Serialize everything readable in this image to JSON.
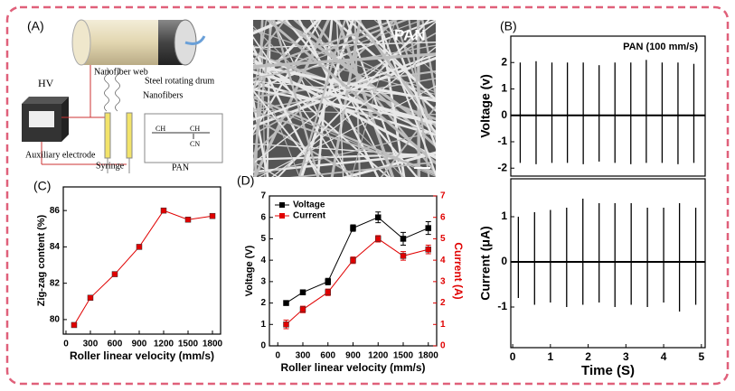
{
  "schematic": {
    "label": "(A)",
    "hv": "HV",
    "web": "Nanofiber  web",
    "drum": "Steel rotating drum",
    "fibers": "Nanofibers",
    "electrode": "Auxiliary electrode",
    "syringe": "Syringe",
    "formula": {
      "ch2": "CH",
      "ch": "CH",
      "cn": "CN",
      "name": "PAN"
    }
  },
  "sem": {
    "label": "PAN"
  },
  "chart_data": [
    {
      "type": "line",
      "label": "(C)",
      "ylabel": "Zig-zag content (%)",
      "xlabel": "Roller linear velocity (mm/s)",
      "x": [
        100,
        300,
        600,
        900,
        1200,
        1500,
        1800
      ],
      "values": [
        79.7,
        81.2,
        82.5,
        84,
        86,
        85.5,
        85.7
      ],
      "color": "#e00000",
      "xlim": [
        -33,
        1900
      ],
      "xticks": [
        0,
        300,
        600,
        900,
        1200,
        1500,
        1800
      ],
      "ylim": [
        79.2,
        87.3
      ],
      "yticks": [
        80,
        82,
        84,
        86
      ]
    },
    {
      "type": "line",
      "label": "(D)",
      "ylabel": "Voltage (V)",
      "y2label": "Current (A)",
      "xlabel": "Roller linear velocity (mm/s)",
      "x": [
        100,
        300,
        600,
        900,
        1200,
        1500,
        1800
      ],
      "series": [
        {
          "name": "Voltage",
          "color": "#000000",
          "values": [
            2.0,
            2.5,
            3.0,
            5.5,
            6.0,
            5.0,
            5.5
          ],
          "errors": [
            0.1,
            0.1,
            0.15,
            0.15,
            0.25,
            0.3,
            0.3
          ]
        },
        {
          "name": "Current",
          "color": "#e00000",
          "axis": "y2",
          "values": [
            1.0,
            1.7,
            2.5,
            4.0,
            5.0,
            4.2,
            4.5
          ],
          "errors": [
            0.2,
            0.15,
            0.15,
            0.15,
            0.15,
            0.2,
            0.2
          ]
        }
      ],
      "xlim": [
        -100,
        1900
      ],
      "xticks": [
        0,
        300,
        600,
        900,
        1200,
        1500,
        1800
      ],
      "ylim": [
        0,
        7
      ],
      "yticks": [
        0,
        1,
        2,
        3,
        4,
        5,
        6,
        7
      ],
      "y2lim": [
        0,
        7
      ],
      "y2ticks": [
        0,
        1,
        2,
        3,
        4,
        5,
        6,
        7
      ],
      "legend": "upper left"
    },
    {
      "type": "spike",
      "label": "(B)",
      "annotation": "PAN (100 mm/s)",
      "ylabel": "Voltage (v)",
      "color": "#000000",
      "x": [
        0.2,
        0.62,
        1.04,
        1.45,
        1.87,
        2.29,
        2.71,
        3.13,
        3.54,
        3.96,
        4.38,
        4.8
      ],
      "highs": [
        2.0,
        2.05,
        2.0,
        2.0,
        2.0,
        1.9,
        2.0,
        2.0,
        2.1,
        2.0,
        2.0,
        1.95
      ],
      "lows": [
        -1.8,
        -1.85,
        -1.8,
        -1.8,
        -1.85,
        -1.75,
        -1.8,
        -1.85,
        -1.8,
        -1.8,
        -1.85,
        -1.8
      ],
      "xlim": [
        -0.05,
        5.1
      ],
      "ylim": [
        -2.3,
        3.0
      ],
      "yticks": [
        -2,
        -1,
        0,
        1,
        2
      ]
    },
    {
      "type": "spike",
      "ylabel": "Current (μA)",
      "xlabel": "Time (S)",
      "color": "#000000",
      "x": [
        0.15,
        0.58,
        1.0,
        1.43,
        1.86,
        2.29,
        2.71,
        3.14,
        3.57,
        4.0,
        4.42,
        4.85
      ],
      "highs": [
        1.0,
        1.1,
        1.15,
        1.2,
        1.4,
        1.3,
        1.3,
        1.3,
        1.2,
        1.2,
        1.3,
        1.2
      ],
      "lows": [
        -0.8,
        -0.95,
        -0.9,
        -1.0,
        -0.95,
        -0.9,
        -1.0,
        -0.95,
        -1.0,
        -0.9,
        -1.1,
        -0.95
      ],
      "xlim": [
        -0.05,
        5.1
      ],
      "xticks": [
        0,
        1,
        2,
        3,
        4,
        5
      ],
      "ylim": [
        -1.9,
        1.84
      ],
      "yticks": [
        -1,
        0,
        1
      ]
    }
  ]
}
